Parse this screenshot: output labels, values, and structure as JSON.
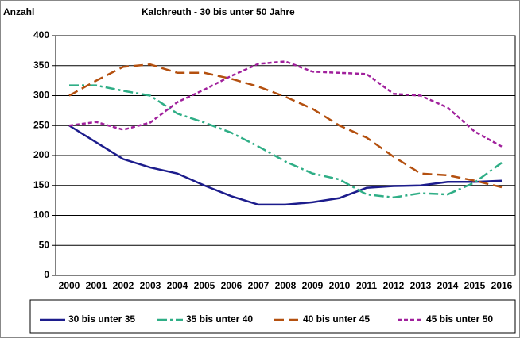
{
  "chart_data": {
    "type": "line",
    "title": "Kalchreuth - 30 bis unter 50 Jahre",
    "y_label": "Anzahl",
    "categories": [
      "2000",
      "2001",
      "2002",
      "2003",
      "2004",
      "2005",
      "2006",
      "2007",
      "2008",
      "2009",
      "2010",
      "2011",
      "2012",
      "2013",
      "2014",
      "2015",
      "2016"
    ],
    "series": [
      {
        "name": "30 bis unter 35",
        "color": "#1c1c8c",
        "dash": "none",
        "values": [
          250,
          222,
          194,
          180,
          170,
          150,
          132,
          118,
          118,
          122,
          129,
          146,
          149,
          150,
          156,
          156,
          158
        ]
      },
      {
        "name": "35 bis unter 40",
        "color": "#2fae86",
        "dash": "12 4 3 4",
        "values": [
          317,
          317,
          308,
          300,
          270,
          255,
          238,
          215,
          190,
          170,
          160,
          135,
          130,
          137,
          135,
          155,
          188
        ]
      },
      {
        "name": "40 bis unter 45",
        "color": "#b4500f",
        "dash": "12 6",
        "values": [
          300,
          325,
          348,
          352,
          338,
          338,
          328,
          315,
          298,
          278,
          250,
          230,
          198,
          170,
          167,
          158,
          147
        ]
      },
      {
        "name": "45 bis unter 50",
        "color": "#a0209c",
        "dash": "5 3",
        "values": [
          250,
          256,
          243,
          255,
          289,
          310,
          333,
          353,
          357,
          340,
          338,
          336,
          303,
          300,
          280,
          240,
          215
        ]
      }
    ],
    "ylim": [
      0,
      400
    ],
    "yticks": [
      0,
      50,
      100,
      150,
      200,
      250,
      300,
      350,
      400
    ],
    "grid": true,
    "legend": "bottom"
  }
}
